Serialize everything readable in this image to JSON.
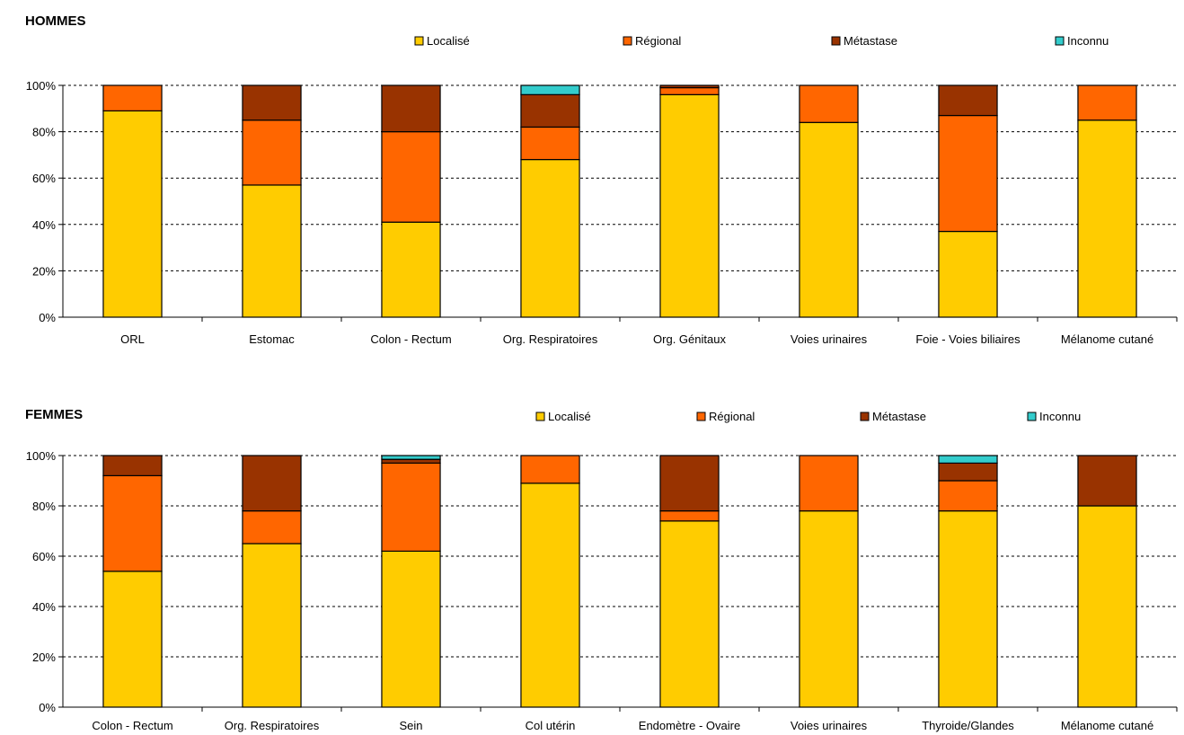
{
  "series_colors": {
    "localise": "#FFCC00",
    "regional": "#FF6600",
    "metastase": "#993300",
    "inconnu": "#33CCCC"
  },
  "chart_data": [
    {
      "type": "bar",
      "stacked": true,
      "title": "HOMMES",
      "ylim": [
        0,
        100
      ],
      "yticks": [
        "0%",
        "20%",
        "40%",
        "60%",
        "80%",
        "100%"
      ],
      "grid": true,
      "legend_position": "top",
      "categories": [
        "ORL",
        "Estomac",
        "Colon - Rectum",
        "Org. Respiratoires",
        "Org. Génitaux",
        "Voies urinaires",
        "Foie - Voies biliaires",
        "Mélanome cutané"
      ],
      "series": [
        {
          "name": "Localisé",
          "color_key": "localise",
          "values": [
            89,
            57,
            41,
            68,
            96,
            84,
            37,
            85
          ]
        },
        {
          "name": "Régional",
          "color_key": "regional",
          "values": [
            11,
            28,
            39,
            14,
            3,
            16,
            50,
            15
          ]
        },
        {
          "name": "Métastase",
          "color_key": "metastase",
          "values": [
            0,
            15,
            20,
            14,
            1,
            0,
            13,
            0
          ]
        },
        {
          "name": "Inconnu",
          "color_key": "inconnu",
          "values": [
            0,
            0,
            0,
            4,
            0,
            0,
            0,
            0
          ]
        }
      ]
    },
    {
      "type": "bar",
      "stacked": true,
      "title": "FEMMES",
      "ylim": [
        0,
        100
      ],
      "yticks": [
        "0%",
        "20%",
        "40%",
        "60%",
        "80%",
        "100%"
      ],
      "grid": true,
      "legend_position": "top",
      "categories": [
        "Colon - Rectum",
        "Org. Respiratoires",
        "Sein",
        "Col utérin",
        "Endomètre - Ovaire",
        "Voies urinaires",
        "Thyroide/Glandes",
        "Mélanome cutané"
      ],
      "series": [
        {
          "name": "Localisé",
          "color_key": "localise",
          "values": [
            54,
            65,
            62,
            89,
            74,
            78,
            78,
            80
          ]
        },
        {
          "name": "Régional",
          "color_key": "regional",
          "values": [
            38,
            13,
            35,
            11,
            4,
            22,
            12,
            0
          ]
        },
        {
          "name": "Métastase",
          "color_key": "metastase",
          "values": [
            8,
            22,
            1.5,
            0,
            22,
            0,
            7,
            20
          ]
        },
        {
          "name": "Inconnu",
          "color_key": "inconnu",
          "values": [
            0,
            0,
            1.5,
            0,
            0,
            0,
            3,
            0
          ]
        }
      ]
    }
  ]
}
